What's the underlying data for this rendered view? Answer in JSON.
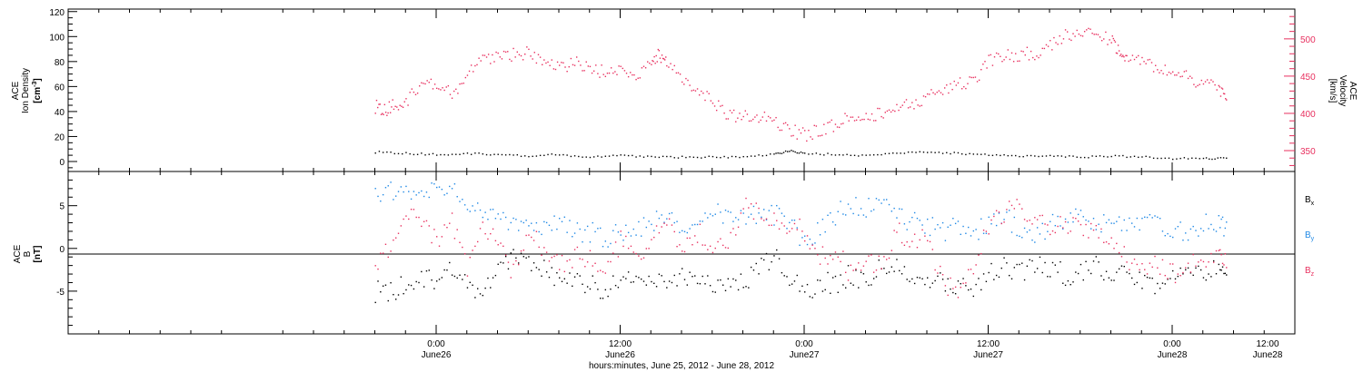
{
  "colors": {
    "black": "#000000",
    "pink": "#e8305f",
    "blue": "#1e88e5"
  },
  "chart_data": [
    {
      "type": "scatter",
      "panel": "top",
      "title": "",
      "x_range_hours": [
        0,
        80
      ],
      "x_start": "June 25, 2012 00:00",
      "left_axis": {
        "label_lines": [
          "ACE",
          "Ion Density"
        ],
        "unit": {
          "pre": "[cm",
          "sup": "-3",
          "post": "]"
        },
        "ylim": [
          -8,
          122
        ],
        "ticks": [
          0,
          20,
          40,
          60,
          80,
          100,
          120
        ],
        "tick_labels": [
          "0",
          "20",
          "40",
          "60",
          "80",
          "100",
          "120"
        ]
      },
      "right_axis": {
        "label_lines": [
          "ACE",
          "Velocity",
          "[km/s]"
        ],
        "ylim": [
          322,
          540
        ],
        "ticks": [
          350,
          400,
          450,
          500
        ],
        "tick_labels": [
          "350",
          "400",
          "450",
          "500"
        ]
      },
      "series": [
        {
          "color": "#e8305f",
          "axis": "right",
          "hours": [
            20,
            20.6,
            21.2,
            22,
            23,
            24,
            25,
            26,
            27,
            28,
            29,
            30,
            31,
            32,
            33,
            34,
            35,
            36,
            37,
            38,
            38.5,
            39,
            40,
            41,
            42,
            43,
            44,
            45,
            46,
            47,
            48,
            49,
            50,
            51,
            52,
            53,
            54,
            55,
            56,
            57,
            58,
            59,
            60,
            61,
            62,
            63,
            64,
            65,
            66,
            67,
            68,
            68.5,
            69,
            70,
            71,
            72,
            73,
            74,
            75,
            75.5
          ],
          "values": [
            410,
            405,
            412,
            418,
            440,
            442,
            425,
            455,
            470,
            475,
            480,
            482,
            468,
            460,
            470,
            462,
            455,
            458,
            445,
            470,
            480,
            472,
            450,
            430,
            418,
            400,
            395,
            398,
            392,
            378,
            372,
            378,
            385,
            398,
            395,
            400,
            408,
            412,
            425,
            430,
            440,
            442,
            470,
            478,
            480,
            482,
            490,
            505,
            510,
            505,
            500,
            485,
            475,
            470,
            462,
            455,
            448,
            442,
            435,
            420
          ]
        },
        {
          "color": "#000000",
          "axis": "left",
          "hours": [
            20,
            22,
            24,
            26,
            28,
            30,
            32,
            34,
            36,
            38,
            40,
            42,
            44,
            46,
            47,
            48,
            50,
            52,
            54,
            56,
            58,
            60,
            62,
            64,
            66,
            68,
            70,
            72,
            74,
            75.5
          ],
          "values": [
            8,
            7,
            6,
            7,
            6,
            5,
            6,
            4,
            5,
            4,
            4,
            4,
            4,
            6,
            9,
            7,
            6,
            5,
            7,
            8,
            7,
            6,
            5,
            5,
            4,
            5,
            4,
            3,
            3,
            3
          ]
        }
      ]
    },
    {
      "type": "scatter",
      "panel": "bottom",
      "title": "",
      "x_range_hours": [
        0,
        80
      ],
      "left_axis": {
        "label_lines": [
          "ACE",
          "B",
          "[nT]"
        ],
        "ylim": [
          -10,
          9
        ],
        "ticks": [
          -5,
          0,
          5
        ],
        "tick_labels": [
          "-5",
          "0",
          "5"
        ]
      },
      "legend_position": "right",
      "series": [
        {
          "label": {
            "base": "B",
            "sub": "x"
          },
          "color": "#000000",
          "hours": [
            20,
            21,
            22,
            23,
            24,
            25,
            26,
            27,
            28,
            29,
            30,
            31,
            32,
            33,
            34,
            35,
            36,
            37,
            38,
            39,
            40,
            41,
            42,
            43,
            44,
            45,
            46,
            47,
            48,
            49,
            50,
            51,
            52,
            53,
            54,
            55,
            56,
            57,
            58,
            59,
            60,
            61,
            62,
            63,
            64,
            65,
            66,
            67,
            68,
            69,
            70,
            71,
            72,
            73,
            74,
            75,
            75.5
          ],
          "values": [
            -5,
            -5,
            -4,
            -3,
            -4,
            -2,
            -4,
            -5,
            -3,
            -1,
            -2,
            -2,
            -4,
            -4,
            -4,
            -5,
            -3,
            -4,
            -4,
            -4,
            -3,
            -3,
            -4,
            -4,
            -4,
            -2,
            -1,
            -3,
            -5,
            -4,
            -4,
            -3,
            -4,
            -2,
            -2,
            -3,
            -4,
            -4,
            -4,
            -5,
            -3,
            -2,
            -3,
            -2,
            -2,
            -3,
            -3,
            -2,
            -3,
            -3,
            -4,
            -4,
            -3,
            -3,
            -3,
            -2,
            -3
          ]
        },
        {
          "label": {
            "base": "B",
            "sub": "y"
          },
          "color": "#1e88e5",
          "hours": [
            20,
            21,
            22,
            23,
            24,
            25,
            26,
            27,
            28,
            29,
            30,
            31,
            32,
            33,
            34,
            35,
            36,
            37,
            38,
            39,
            40,
            41,
            42,
            43,
            44,
            45,
            46,
            47,
            48,
            49,
            50,
            51,
            52,
            53,
            54,
            55,
            56,
            57,
            58,
            59,
            60,
            61,
            62,
            63,
            64,
            65,
            66,
            67,
            68,
            69,
            70,
            71,
            72,
            73,
            74,
            75,
            75.5
          ],
          "values": [
            6,
            7,
            7,
            6,
            7,
            7,
            5,
            4,
            4,
            3,
            2,
            2,
            3,
            2,
            2,
            1,
            2,
            2,
            3,
            4,
            3,
            3,
            4,
            4,
            4,
            4,
            4,
            3,
            1,
            2,
            4,
            5,
            5,
            6,
            4,
            3,
            3,
            2,
            3,
            2,
            3,
            4,
            2,
            1,
            3,
            3,
            4,
            3,
            3,
            3,
            3,
            3,
            2,
            2,
            3,
            3,
            2
          ]
        },
        {
          "label": {
            "base": "B",
            "sub": "z"
          },
          "color": "#e8305f",
          "hours": [
            20,
            21,
            22,
            23,
            24,
            25,
            26,
            27,
            28,
            29,
            30,
            31,
            32,
            33,
            34,
            35,
            36,
            37,
            38,
            39,
            40,
            41,
            42,
            43,
            44,
            45,
            46,
            47,
            48,
            49,
            50,
            51,
            52,
            53,
            54,
            55,
            56,
            57,
            58,
            59,
            60,
            61,
            62,
            63,
            64,
            65,
            66,
            67,
            68,
            69,
            70,
            71,
            72,
            73,
            74,
            75,
            75.5
          ],
          "values": [
            -2,
            0,
            4,
            3,
            1,
            3,
            -2,
            2,
            1,
            -3,
            2,
            0,
            -2,
            -1,
            -1,
            -3,
            1,
            -1,
            1,
            3,
            0,
            2,
            0,
            0,
            5,
            4,
            3,
            3,
            2,
            -1,
            0,
            -3,
            -1,
            -2,
            2,
            1,
            1,
            -4,
            -5,
            -2,
            3,
            4,
            5,
            4,
            2,
            3,
            3,
            2,
            1,
            -1,
            -2,
            -2,
            -3,
            -2,
            -1,
            0,
            -1
          ]
        }
      ]
    }
  ],
  "x_axis": {
    "tick_hours": [
      24,
      36,
      48,
      60,
      72
    ],
    "time_labels": [
      "0:00",
      "12:00",
      "0:00",
      "12:00",
      "0:00",
      "12:00"
    ],
    "date_labels": [
      "June26",
      "June26",
      "June27",
      "June27",
      "June28",
      "June28"
    ],
    "label_hours": [
      24,
      36,
      48,
      60,
      72,
      84
    ],
    "title": "hours:minutes, June 25, 2012 - June 28, 2012"
  }
}
